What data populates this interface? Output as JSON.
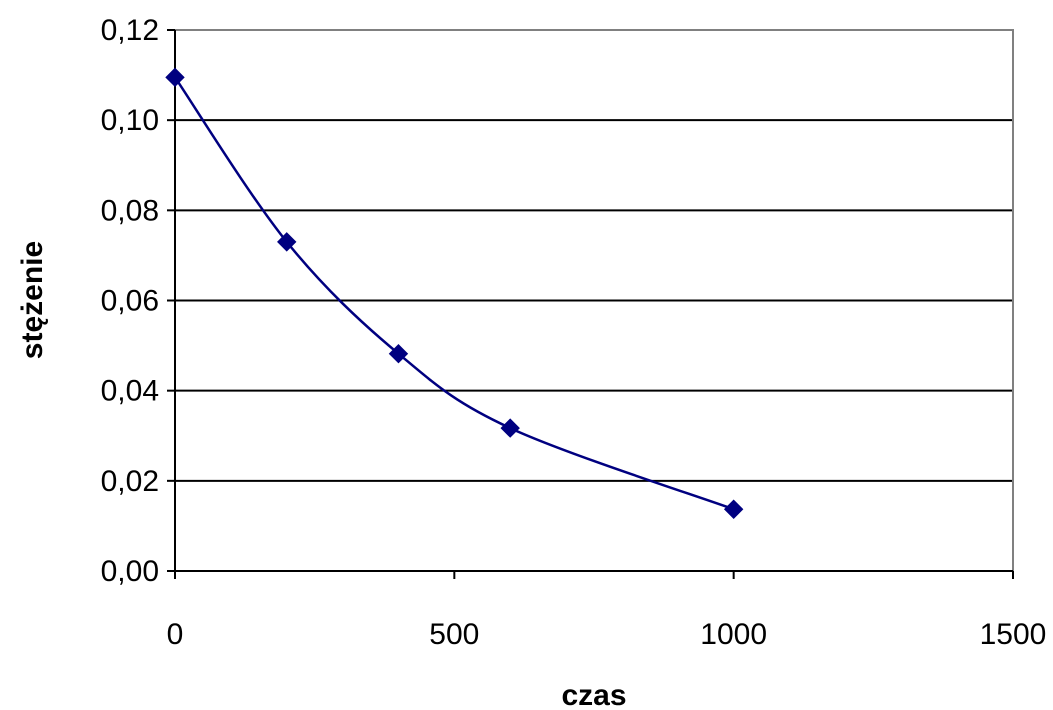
{
  "chart_data": {
    "type": "line",
    "title": "",
    "xlabel": "czas",
    "ylabel": "stężenie",
    "xlim": [
      0,
      1500
    ],
    "ylim": [
      0,
      0.12
    ],
    "x_ticks": [
      0,
      500,
      1000,
      1500
    ],
    "x_tick_labels": [
      "0",
      "500",
      "1000",
      "1500"
    ],
    "y_ticks": [
      0,
      0.02,
      0.04,
      0.06,
      0.08,
      0.1,
      0.12
    ],
    "y_tick_labels": [
      "0,00",
      "0,02",
      "0,04",
      "0,06",
      "0,08",
      "0,10",
      "0,12"
    ],
    "grid": "horizontal",
    "legend": "none",
    "smoothed": true,
    "marker": "diamond",
    "series": [
      {
        "color": "#000080",
        "x": [
          0,
          200,
          400,
          600,
          1000
        ],
        "y": [
          0.1095,
          0.073,
          0.0482,
          0.0317,
          0.0137
        ]
      }
    ]
  }
}
